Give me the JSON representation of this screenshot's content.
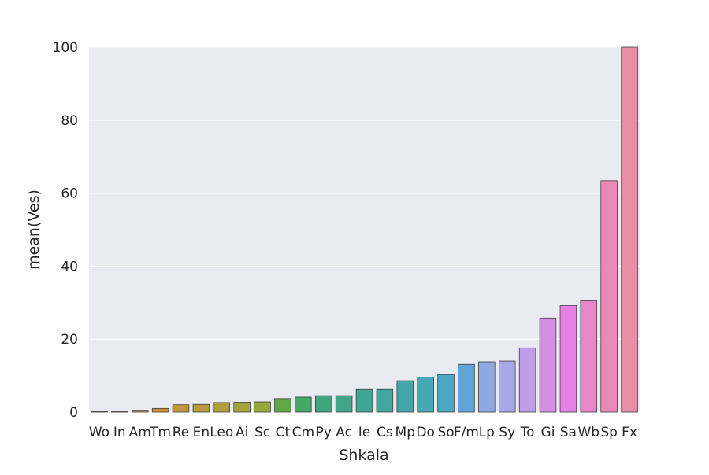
{
  "chart_data": {
    "type": "bar",
    "title": "",
    "xlabel": "Shkala",
    "ylabel": "mean(Ves)",
    "ylim": [
      0,
      100
    ],
    "yticks": [
      0,
      20,
      40,
      60,
      80,
      100
    ],
    "grid": true,
    "categories": [
      "Wo",
      "In",
      "Am",
      "Tm",
      "Re",
      "En",
      "Leo",
      "Ai",
      "Sc",
      "Ct",
      "Cm",
      "Py",
      "Ac",
      "Ie",
      "Cs",
      "Mp",
      "Do",
      "So",
      "F/m",
      "Lp",
      "Sy",
      "To",
      "Gi",
      "Sa",
      "Wb",
      "Sp",
      "Fx"
    ],
    "values": [
      0.2,
      0.2,
      0.5,
      1.0,
      2.0,
      2.1,
      2.6,
      2.7,
      2.8,
      3.7,
      4.1,
      4.5,
      4.5,
      6.2,
      6.2,
      8.6,
      9.6,
      10.3,
      13.1,
      13.8,
      14.0,
      17.6,
      25.8,
      29.2,
      30.5,
      63.4,
      100
    ],
    "colors": [
      "#e8737f",
      "#d97e5c",
      "#cf8a47",
      "#c9913f",
      "#c2973c",
      "#b89c3c",
      "#ae9f3c",
      "#a3a33c",
      "#97a63d",
      "#5ea84a",
      "#43a868",
      "#40a67e",
      "#40a58a",
      "#41a595",
      "#42a59e",
      "#44a6a8",
      "#47a7b4",
      "#4aa8c3",
      "#61a6db",
      "#8ea8e2",
      "#a7a8e6",
      "#c09ee7",
      "#d38fe3",
      "#e481e3",
      "#e786c9",
      "#e88ab8",
      "#e68ea6"
    ],
    "background": "#eaeaf2"
  }
}
